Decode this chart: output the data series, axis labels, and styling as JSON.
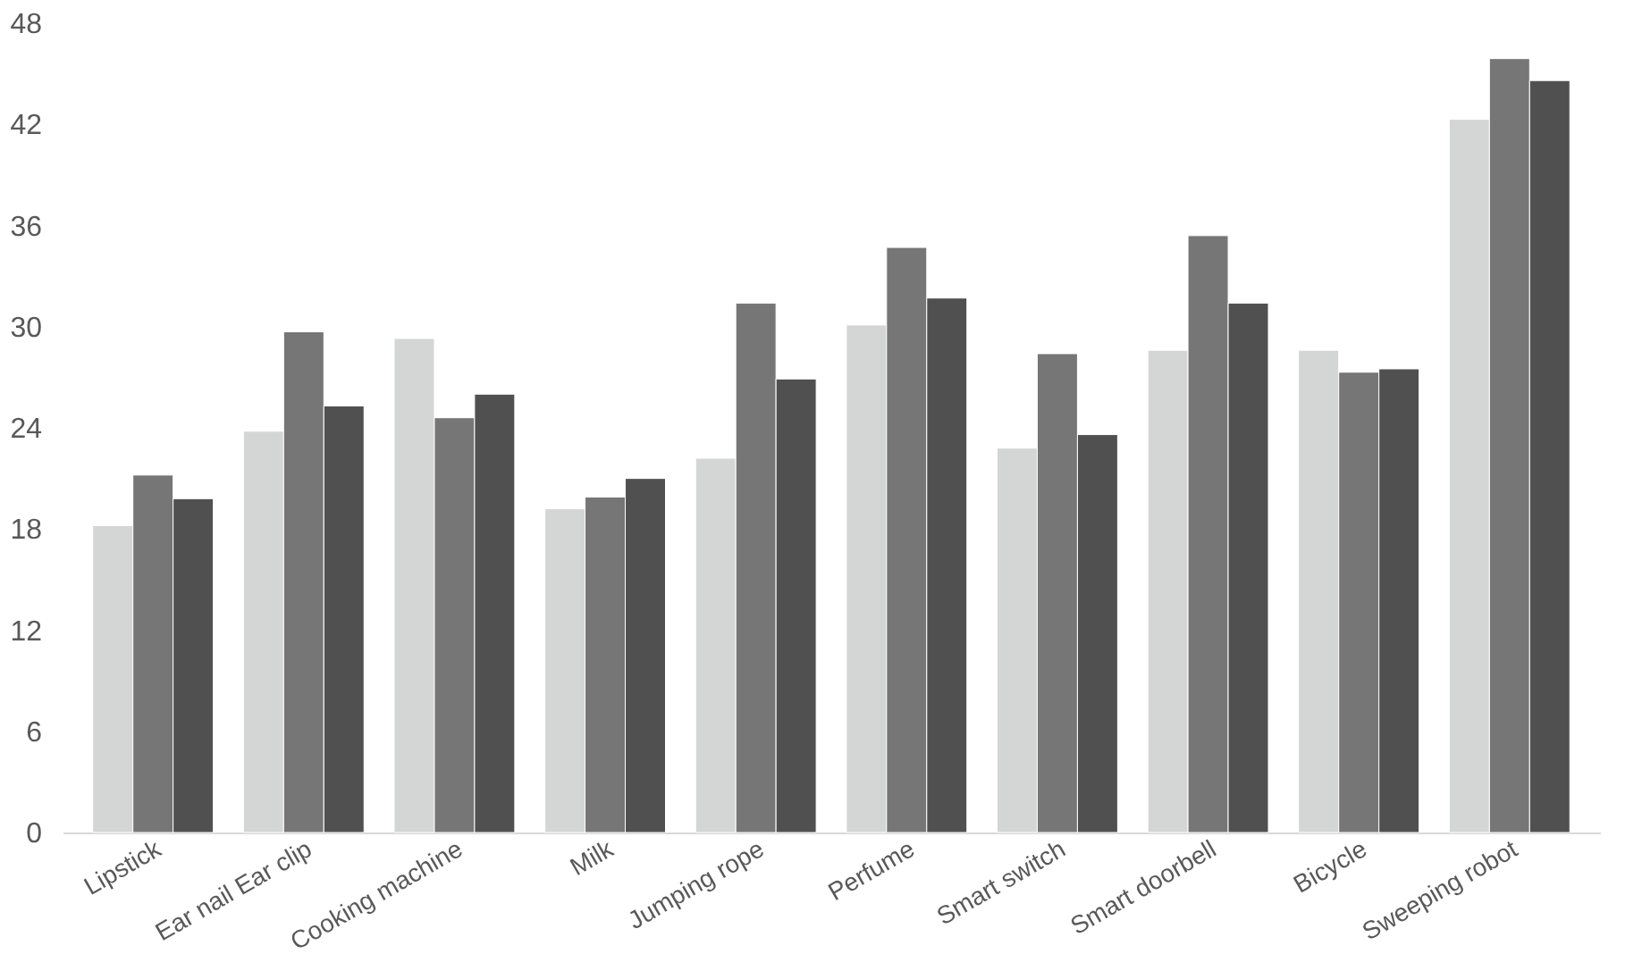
{
  "chart_data": {
    "type": "bar",
    "categories": [
      "Lipstick",
      "Ear nail Ear clip",
      "Cooking machine",
      "Milk",
      "Jumping rope",
      "Perfume",
      "Smart switch",
      "Smart doorbell",
      "Bicycle",
      "Sweeping robot"
    ],
    "series": [
      {
        "color": "#d4d5d5",
        "values": [
          18.2,
          23.8,
          29.3,
          19.2,
          22.2,
          30.1,
          22.8,
          28.6,
          28.6,
          42.3
        ]
      },
      {
        "color": "#767676",
        "values": [
          21.2,
          29.7,
          24.6,
          19.9,
          31.4,
          34.7,
          28.4,
          35.4,
          27.3,
          45.9
        ]
      },
      {
        "color": "#505050",
        "values": [
          19.8,
          25.3,
          26.0,
          21.0,
          26.9,
          31.7,
          23.6,
          31.4,
          27.5,
          44.6
        ]
      }
    ],
    "ylim": [
      0,
      48
    ],
    "yticks": [
      0,
      6,
      12,
      18,
      24,
      30,
      36,
      42,
      48
    ],
    "grid": false,
    "legend": false
  }
}
